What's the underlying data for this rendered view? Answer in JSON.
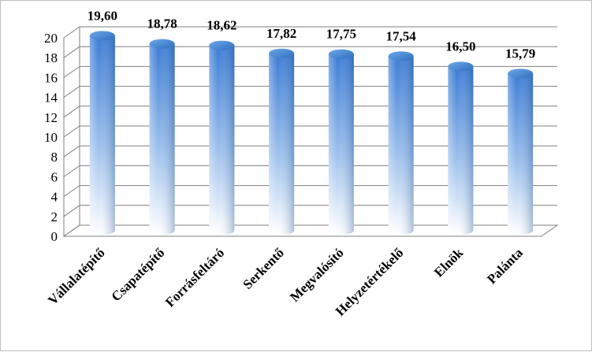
{
  "chart_data": {
    "type": "bar",
    "style": "3d-cylinder",
    "categories": [
      "Vállalatépítő",
      "Csapatépítő",
      "Forrásfeltáró",
      "Serkentő",
      "Megvalósító",
      "Helyzetértékelő",
      "Elnök",
      "Palánta"
    ],
    "values": [
      19.6,
      18.78,
      18.62,
      17.82,
      17.75,
      17.54,
      16.5,
      15.79
    ],
    "value_labels": [
      "19,60",
      "18,78",
      "18,62",
      "17,82",
      "17,75",
      "17,54",
      "16,50",
      "15,79"
    ],
    "yticks": [
      "0",
      "2",
      "4",
      "6",
      "8",
      "10",
      "12",
      "14",
      "16",
      "18",
      "20"
    ],
    "ylim": [
      0,
      20
    ],
    "grid": true,
    "legend": "none",
    "title": "",
    "xlabel": "",
    "ylabel": "",
    "colors": {
      "bar_top": "#5b9bd5",
      "bar_mid": "#3d7cc4",
      "bar_bottom": "#ffffff",
      "grid": "#7f7f7f"
    }
  }
}
